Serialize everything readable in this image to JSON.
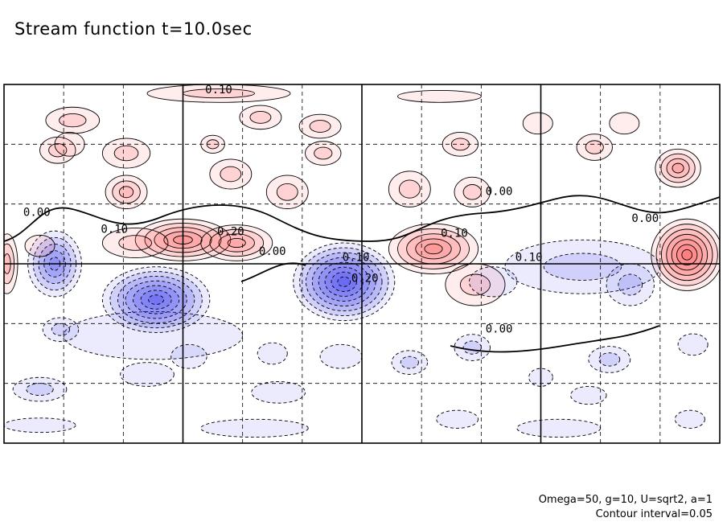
{
  "title": "Stream function t=10.0sec",
  "footnotes": {
    "params": "Omega=50, g=10, U=sqrt2, a=1",
    "contour_interval": "Contour interval=0.05"
  },
  "colors": {
    "positive": "#ff3030",
    "negative": "#2020ee",
    "frame": "#000000",
    "grid": "#000000"
  },
  "chart_data": {
    "type": "heatmap",
    "title": "Stream function t=10.0sec",
    "xlabel": "",
    "ylabel": "",
    "grid": true,
    "x_divisions": 12,
    "y_divisions": 6,
    "major_x_lines": [
      3,
      6,
      9
    ],
    "major_y_lines": [
      3
    ],
    "contour_interval": 0.05,
    "contour_labels": [
      {
        "text": "0.10",
        "x": 3.6,
        "y": 0.15
      },
      {
        "text": "0.00",
        "x": 0.55,
        "y": 2.2
      },
      {
        "text": "0.10",
        "x": 1.85,
        "y": 2.48
      },
      {
        "text": "0.20",
        "x": 3.8,
        "y": 2.52
      },
      {
        "text": "0.00",
        "x": 4.5,
        "y": 2.85
      },
      {
        "text": "0.10",
        "x": 5.9,
        "y": 2.95
      },
      {
        "text": "0.20",
        "x": 6.05,
        "y": 3.3
      },
      {
        "text": "0.10",
        "x": 7.55,
        "y": 2.55
      },
      {
        "text": "0.00",
        "x": 8.3,
        "y": 1.85
      },
      {
        "text": "0.10",
        "x": 8.8,
        "y": 2.95
      },
      {
        "text": "0.00",
        "x": 10.75,
        "y": 2.3
      },
      {
        "text": "0.00",
        "x": 8.3,
        "y": 4.15
      }
    ],
    "features": [
      {
        "sign": 1,
        "cx": 3.0,
        "cy": 2.6,
        "rx": 0.8,
        "ry": 0.35,
        "level": 0.26
      },
      {
        "sign": 1,
        "cx": 3.9,
        "cy": 2.65,
        "rx": 0.6,
        "ry": 0.3,
        "level": 0.2
      },
      {
        "sign": 1,
        "cx": 2.2,
        "cy": 2.65,
        "rx": 0.55,
        "ry": 0.25,
        "level": 0.12
      },
      {
        "sign": 1,
        "cx": 7.2,
        "cy": 2.75,
        "rx": 0.75,
        "ry": 0.42,
        "level": 0.24
      },
      {
        "sign": 1,
        "cx": 7.9,
        "cy": 3.35,
        "rx": 0.5,
        "ry": 0.35,
        "level": 0.12
      },
      {
        "sign": 1,
        "cx": 11.45,
        "cy": 2.85,
        "rx": 0.6,
        "ry": 0.6,
        "level": 0.34
      },
      {
        "sign": 1,
        "cx": 0.05,
        "cy": 3.0,
        "rx": 0.18,
        "ry": 0.5,
        "level": 0.16
      },
      {
        "sign": 1,
        "cx": 3.6,
        "cy": 0.15,
        "rx": 1.2,
        "ry": 0.15,
        "level": 0.1
      },
      {
        "sign": 1,
        "cx": 7.3,
        "cy": 0.2,
        "rx": 0.7,
        "ry": 0.1,
        "level": 0.05
      },
      {
        "sign": 1,
        "cx": 1.15,
        "cy": 0.6,
        "rx": 0.45,
        "ry": 0.22,
        "level": 0.12
      },
      {
        "sign": 1,
        "cx": 4.3,
        "cy": 0.55,
        "rx": 0.35,
        "ry": 0.2,
        "level": 0.08
      },
      {
        "sign": 1,
        "cx": 5.3,
        "cy": 0.7,
        "rx": 0.35,
        "ry": 0.2,
        "level": 0.08
      },
      {
        "sign": 1,
        "cx": 0.9,
        "cy": 1.1,
        "rx": 0.3,
        "ry": 0.22,
        "level": 0.12
      },
      {
        "sign": 1,
        "cx": 2.05,
        "cy": 1.15,
        "rx": 0.4,
        "ry": 0.25,
        "level": 0.1
      },
      {
        "sign": 1,
        "cx": 3.5,
        "cy": 1.0,
        "rx": 0.2,
        "ry": 0.15,
        "level": 0.08
      },
      {
        "sign": 1,
        "cx": 2.05,
        "cy": 1.8,
        "rx": 0.35,
        "ry": 0.28,
        "level": 0.15
      },
      {
        "sign": 1,
        "cx": 3.8,
        "cy": 1.5,
        "rx": 0.35,
        "ry": 0.25,
        "level": 0.1
      },
      {
        "sign": 1,
        "cx": 4.75,
        "cy": 1.8,
        "rx": 0.35,
        "ry": 0.28,
        "level": 0.12
      },
      {
        "sign": 1,
        "cx": 5.35,
        "cy": 1.15,
        "rx": 0.3,
        "ry": 0.2,
        "level": 0.08
      },
      {
        "sign": 1,
        "cx": 6.8,
        "cy": 1.75,
        "rx": 0.35,
        "ry": 0.3,
        "level": 0.1
      },
      {
        "sign": 1,
        "cx": 7.85,
        "cy": 1.8,
        "rx": 0.3,
        "ry": 0.25,
        "level": 0.12
      },
      {
        "sign": 1,
        "cx": 7.65,
        "cy": 1.0,
        "rx": 0.3,
        "ry": 0.2,
        "level": 0.1
      },
      {
        "sign": 1,
        "cx": 8.95,
        "cy": 0.65,
        "rx": 0.25,
        "ry": 0.18,
        "level": 0.06
      },
      {
        "sign": 1,
        "cx": 9.9,
        "cy": 1.05,
        "rx": 0.3,
        "ry": 0.22,
        "level": 0.1
      },
      {
        "sign": 1,
        "cx": 10.4,
        "cy": 0.65,
        "rx": 0.25,
        "ry": 0.18,
        "level": 0.06
      },
      {
        "sign": 1,
        "cx": 11.3,
        "cy": 1.4,
        "rx": 0.38,
        "ry": 0.32,
        "level": 0.22
      },
      {
        "sign": 1,
        "cx": 0.6,
        "cy": 2.7,
        "rx": 0.25,
        "ry": 0.18,
        "level": 0.05
      },
      {
        "sign": 1,
        "cx": 1.1,
        "cy": 1.0,
        "rx": 0.25,
        "ry": 0.2,
        "level": 0.06
      },
      {
        "sign": -1,
        "cx": 0.85,
        "cy": 3.0,
        "rx": 0.45,
        "ry": 0.55,
        "level": 0.26
      },
      {
        "sign": -1,
        "cx": 2.55,
        "cy": 3.6,
        "rx": 0.9,
        "ry": 0.55,
        "level": 0.36
      },
      {
        "sign": -1,
        "cx": 5.7,
        "cy": 3.3,
        "rx": 0.85,
        "ry": 0.65,
        "level": 0.38
      },
      {
        "sign": -1,
        "cx": 9.7,
        "cy": 3.05,
        "rx": 1.3,
        "ry": 0.45,
        "level": 0.12
      },
      {
        "sign": -1,
        "cx": 10.5,
        "cy": 3.35,
        "rx": 0.4,
        "ry": 0.35,
        "level": 0.1
      },
      {
        "sign": -1,
        "cx": 8.2,
        "cy": 3.3,
        "rx": 0.4,
        "ry": 0.25,
        "level": 0.06
      },
      {
        "sign": -1,
        "cx": 0.95,
        "cy": 4.1,
        "rx": 0.3,
        "ry": 0.2,
        "level": 0.08
      },
      {
        "sign": -1,
        "cx": 2.4,
        "cy": 4.85,
        "rx": 0.45,
        "ry": 0.2,
        "level": 0.06
      },
      {
        "sign": -1,
        "cx": 0.6,
        "cy": 5.1,
        "rx": 0.45,
        "ry": 0.2,
        "level": 0.08
      },
      {
        "sign": -1,
        "cx": 4.6,
        "cy": 5.15,
        "rx": 0.45,
        "ry": 0.18,
        "level": 0.06
      },
      {
        "sign": -1,
        "cx": 0.6,
        "cy": 5.7,
        "rx": 0.6,
        "ry": 0.12,
        "level": 0.05
      },
      {
        "sign": -1,
        "cx": 4.2,
        "cy": 5.75,
        "rx": 0.9,
        "ry": 0.15,
        "level": 0.05
      },
      {
        "sign": -1,
        "cx": 3.1,
        "cy": 4.55,
        "rx": 0.3,
        "ry": 0.2,
        "level": 0.06
      },
      {
        "sign": -1,
        "cx": 4.5,
        "cy": 4.5,
        "rx": 0.25,
        "ry": 0.18,
        "level": 0.06
      },
      {
        "sign": -1,
        "cx": 5.65,
        "cy": 4.55,
        "rx": 0.35,
        "ry": 0.2,
        "level": 0.07
      },
      {
        "sign": -1,
        "cx": 6.8,
        "cy": 4.65,
        "rx": 0.3,
        "ry": 0.2,
        "level": 0.08
      },
      {
        "sign": -1,
        "cx": 7.85,
        "cy": 4.4,
        "rx": 0.3,
        "ry": 0.22,
        "level": 0.1
      },
      {
        "sign": -1,
        "cx": 10.15,
        "cy": 4.6,
        "rx": 0.35,
        "ry": 0.22,
        "level": 0.1
      },
      {
        "sign": -1,
        "cx": 11.55,
        "cy": 4.35,
        "rx": 0.25,
        "ry": 0.18,
        "level": 0.06
      },
      {
        "sign": -1,
        "cx": 9.8,
        "cy": 5.2,
        "rx": 0.3,
        "ry": 0.15,
        "level": 0.05
      },
      {
        "sign": -1,
        "cx": 7.6,
        "cy": 5.6,
        "rx": 0.35,
        "ry": 0.15,
        "level": 0.05
      },
      {
        "sign": -1,
        "cx": 9.3,
        "cy": 5.75,
        "rx": 0.7,
        "ry": 0.15,
        "level": 0.06
      },
      {
        "sign": -1,
        "cx": 9.0,
        "cy": 4.9,
        "rx": 0.2,
        "ry": 0.15,
        "level": 0.05
      },
      {
        "sign": -1,
        "cx": 11.5,
        "cy": 5.6,
        "rx": 0.25,
        "ry": 0.15,
        "level": 0.05
      },
      {
        "sign": -1,
        "cx": 2.5,
        "cy": 4.2,
        "rx": 1.5,
        "ry": 0.4,
        "level": 0.04
      }
    ]
  }
}
